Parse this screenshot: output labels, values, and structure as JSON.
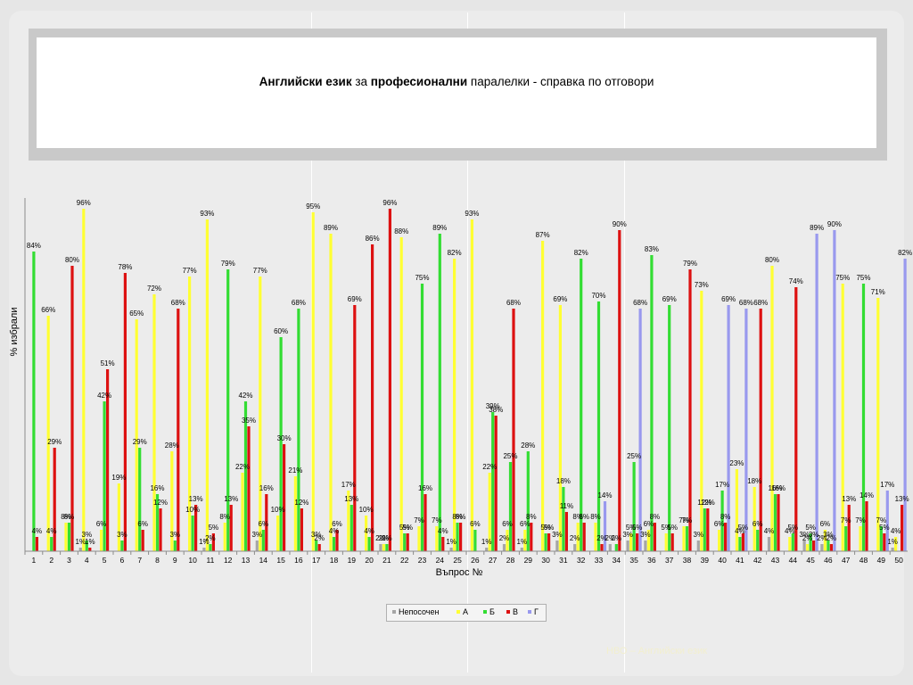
{
  "slide": {
    "title_parts": [
      {
        "text": "Английски език",
        "bold": true
      },
      {
        "text": " за ",
        "bold": false
      },
      {
        "text": "професионални",
        "bold": true
      },
      {
        "text": " паралелки - справка по отговори",
        "bold": false
      }
    ],
    "footer": "НВО – Английски език"
  },
  "chart_data": {
    "type": "bar",
    "ylabel": "% избрали",
    "xlabel": "Въпрос №",
    "ylim": [
      0,
      100
    ],
    "grid": false,
    "legend_placement": "bottom",
    "categories": [
      "1",
      "2",
      "3",
      "4",
      "5",
      "6",
      "7",
      "8",
      "9",
      "10",
      "11",
      "12",
      "13",
      "14",
      "15",
      "16",
      "17",
      "18",
      "19",
      "20",
      "21",
      "22",
      "23",
      "24",
      "25",
      "26",
      "27",
      "28",
      "29",
      "30",
      "31",
      "32",
      "33",
      "34",
      "35",
      "36",
      "37",
      "38",
      "39",
      "40",
      "41",
      "42",
      "43",
      "44",
      "45",
      "46",
      "47",
      "48",
      "49",
      "50"
    ],
    "series": [
      {
        "name": "Непосочен",
        "color": "#a6a6a6",
        "values": [
          0,
          0,
          0,
          1,
          0,
          0,
          0,
          0,
          0,
          0,
          1,
          0,
          0,
          3,
          0,
          0,
          0,
          0,
          0,
          0,
          2,
          0,
          0,
          0,
          1,
          0,
          1,
          2,
          1,
          0,
          3,
          2,
          0,
          2,
          3,
          3,
          0,
          0,
          3,
          0,
          0,
          0,
          4,
          0,
          3,
          2,
          0,
          0,
          0,
          1
        ]
      },
      {
        "name": "А",
        "color": "#ffff33",
        "values": [
          0,
          66,
          8,
          96,
          6,
          19,
          65,
          72,
          28,
          77,
          93,
          8,
          22,
          77,
          10,
          21,
          95,
          89,
          17,
          10,
          2,
          88,
          7,
          7,
          82,
          93,
          22,
          6,
          6,
          87,
          69,
          8,
          8,
          0,
          5,
          6,
          5,
          7,
          73,
          6,
          23,
          18,
          80,
          4,
          2,
          6,
          75,
          7,
          71,
          4
        ]
      },
      {
        "name": "Б",
        "color": "#33dd33",
        "values": [
          84,
          4,
          8,
          3,
          42,
          3,
          29,
          16,
          3,
          10,
          2,
          79,
          42,
          6,
          60,
          68,
          3,
          4,
          13,
          4,
          2,
          5,
          75,
          89,
          8,
          6,
          39,
          25,
          28,
          5,
          18,
          82,
          70,
          2,
          25,
          83,
          69,
          7,
          12,
          17,
          4,
          6,
          16,
          5,
          5,
          3,
          7,
          75,
          7,
          0
        ]
      },
      {
        "name": "В",
        "color": "#dd1111",
        "values": [
          4,
          29,
          80,
          1,
          51,
          78,
          6,
          12,
          68,
          13,
          5,
          13,
          35,
          16,
          30,
          12,
          2,
          6,
          69,
          86,
          96,
          5,
          16,
          4,
          8,
          0,
          38,
          68,
          8,
          5,
          11,
          8,
          2,
          90,
          5,
          8,
          5,
          79,
          12,
          8,
          5,
          68,
          16,
          74,
          3,
          2,
          13,
          14,
          5,
          13
        ]
      },
      {
        "name": "Г",
        "color": "#9999ee",
        "values": [
          0,
          0,
          0,
          0,
          0,
          0,
          0,
          0,
          0,
          0,
          0,
          0,
          0,
          0,
          0,
          0,
          0,
          0,
          0,
          0,
          0,
          0,
          0,
          0,
          0,
          0,
          0,
          0,
          0,
          0,
          0,
          0,
          14,
          0,
          68,
          0,
          0,
          0,
          0,
          69,
          68,
          0,
          0,
          0,
          89,
          90,
          0,
          0,
          17,
          82
        ]
      }
    ]
  }
}
